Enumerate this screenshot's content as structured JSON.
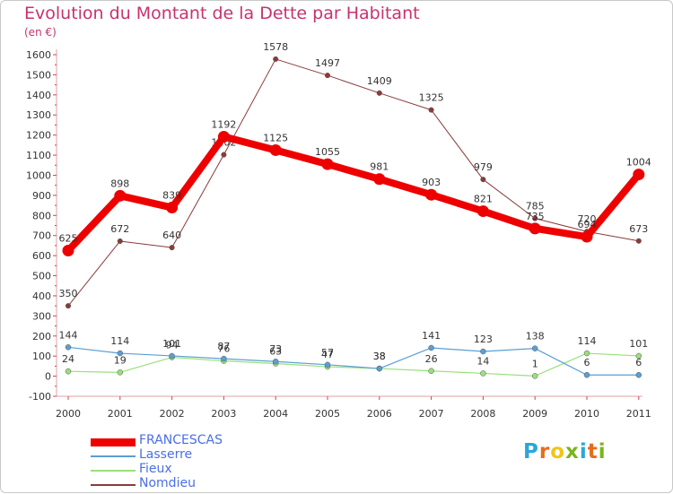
{
  "header": {
    "title": "Evolution du Montant de la Dette par Habitant",
    "unit": "(en €)"
  },
  "logo": {
    "text": "Proxiti",
    "colors": [
      "#2aa7d8",
      "#e86b1c",
      "#f0c419",
      "#7ab51d",
      "#2aa7d8",
      "#e86b1c",
      "#7ab51d"
    ]
  },
  "chart_data": {
    "type": "line",
    "title": "Evolution du Montant de la Dette par Habitant",
    "subtitle": "(en €)",
    "xlabel": "",
    "ylabel": "",
    "ylim": [
      -100,
      1600
    ],
    "yticks": [
      -100,
      0,
      100,
      200,
      300,
      400,
      500,
      600,
      700,
      800,
      900,
      1000,
      1100,
      1200,
      1300,
      1400,
      1500,
      1600
    ],
    "grid": false,
    "legend_position": "bottom-left",
    "categories": [
      "2000",
      "2001",
      "2002",
      "2003",
      "2004",
      "2005",
      "2006",
      "2007",
      "2008",
      "2009",
      "2010",
      "2011"
    ],
    "series": [
      {
        "name": "Nomdieu",
        "color": "#8b3a3a",
        "values": [
          350,
          672,
          640,
          1102,
          1578,
          1497,
          1409,
          1325,
          979,
          785,
          720,
          673
        ],
        "labels": [
          "350",
          "672",
          "640",
          "1102",
          "1578",
          "1497",
          "1409",
          "1325",
          "979",
          "785",
          "720",
          "673"
        ]
      },
      {
        "name": "Fieux",
        "color": "#98e07a",
        "values": [
          24,
          19,
          94,
          76,
          63,
          47,
          38,
          26,
          14,
          1,
          114,
          101
        ],
        "labels": [
          "24",
          "19",
          "94",
          "76",
          "63",
          "47",
          "38",
          "26",
          "14",
          "1",
          "114",
          "101"
        ]
      },
      {
        "name": "Lasserre",
        "color": "#5a9fd4",
        "values": [
          144,
          114,
          101,
          87,
          73,
          57,
          38,
          141,
          123,
          138,
          6,
          6
        ],
        "labels": [
          "144",
          "114",
          "101",
          "87",
          "73",
          "57",
          "38",
          "141",
          "123",
          "138",
          "6",
          "6"
        ]
      },
      {
        "name": "FRANCESCAS",
        "color": "#ee0000",
        "values": [
          625,
          898,
          839,
          1192,
          1125,
          1055,
          981,
          903,
          821,
          735,
          694,
          1004
        ],
        "labels": [
          "625",
          "898",
          "839",
          "1192",
          "1125",
          "1055",
          "981",
          "903",
          "821",
          "735",
          "694",
          "1004"
        ]
      }
    ]
  },
  "legend": {
    "items": [
      {
        "name": "FRANCESCAS",
        "color": "#ee0000"
      },
      {
        "name": "Lasserre",
        "color": "#5a9fd4"
      },
      {
        "name": "Fieux",
        "color": "#98e07a"
      },
      {
        "name": "Nomdieu",
        "color": "#8b3a3a"
      }
    ]
  }
}
